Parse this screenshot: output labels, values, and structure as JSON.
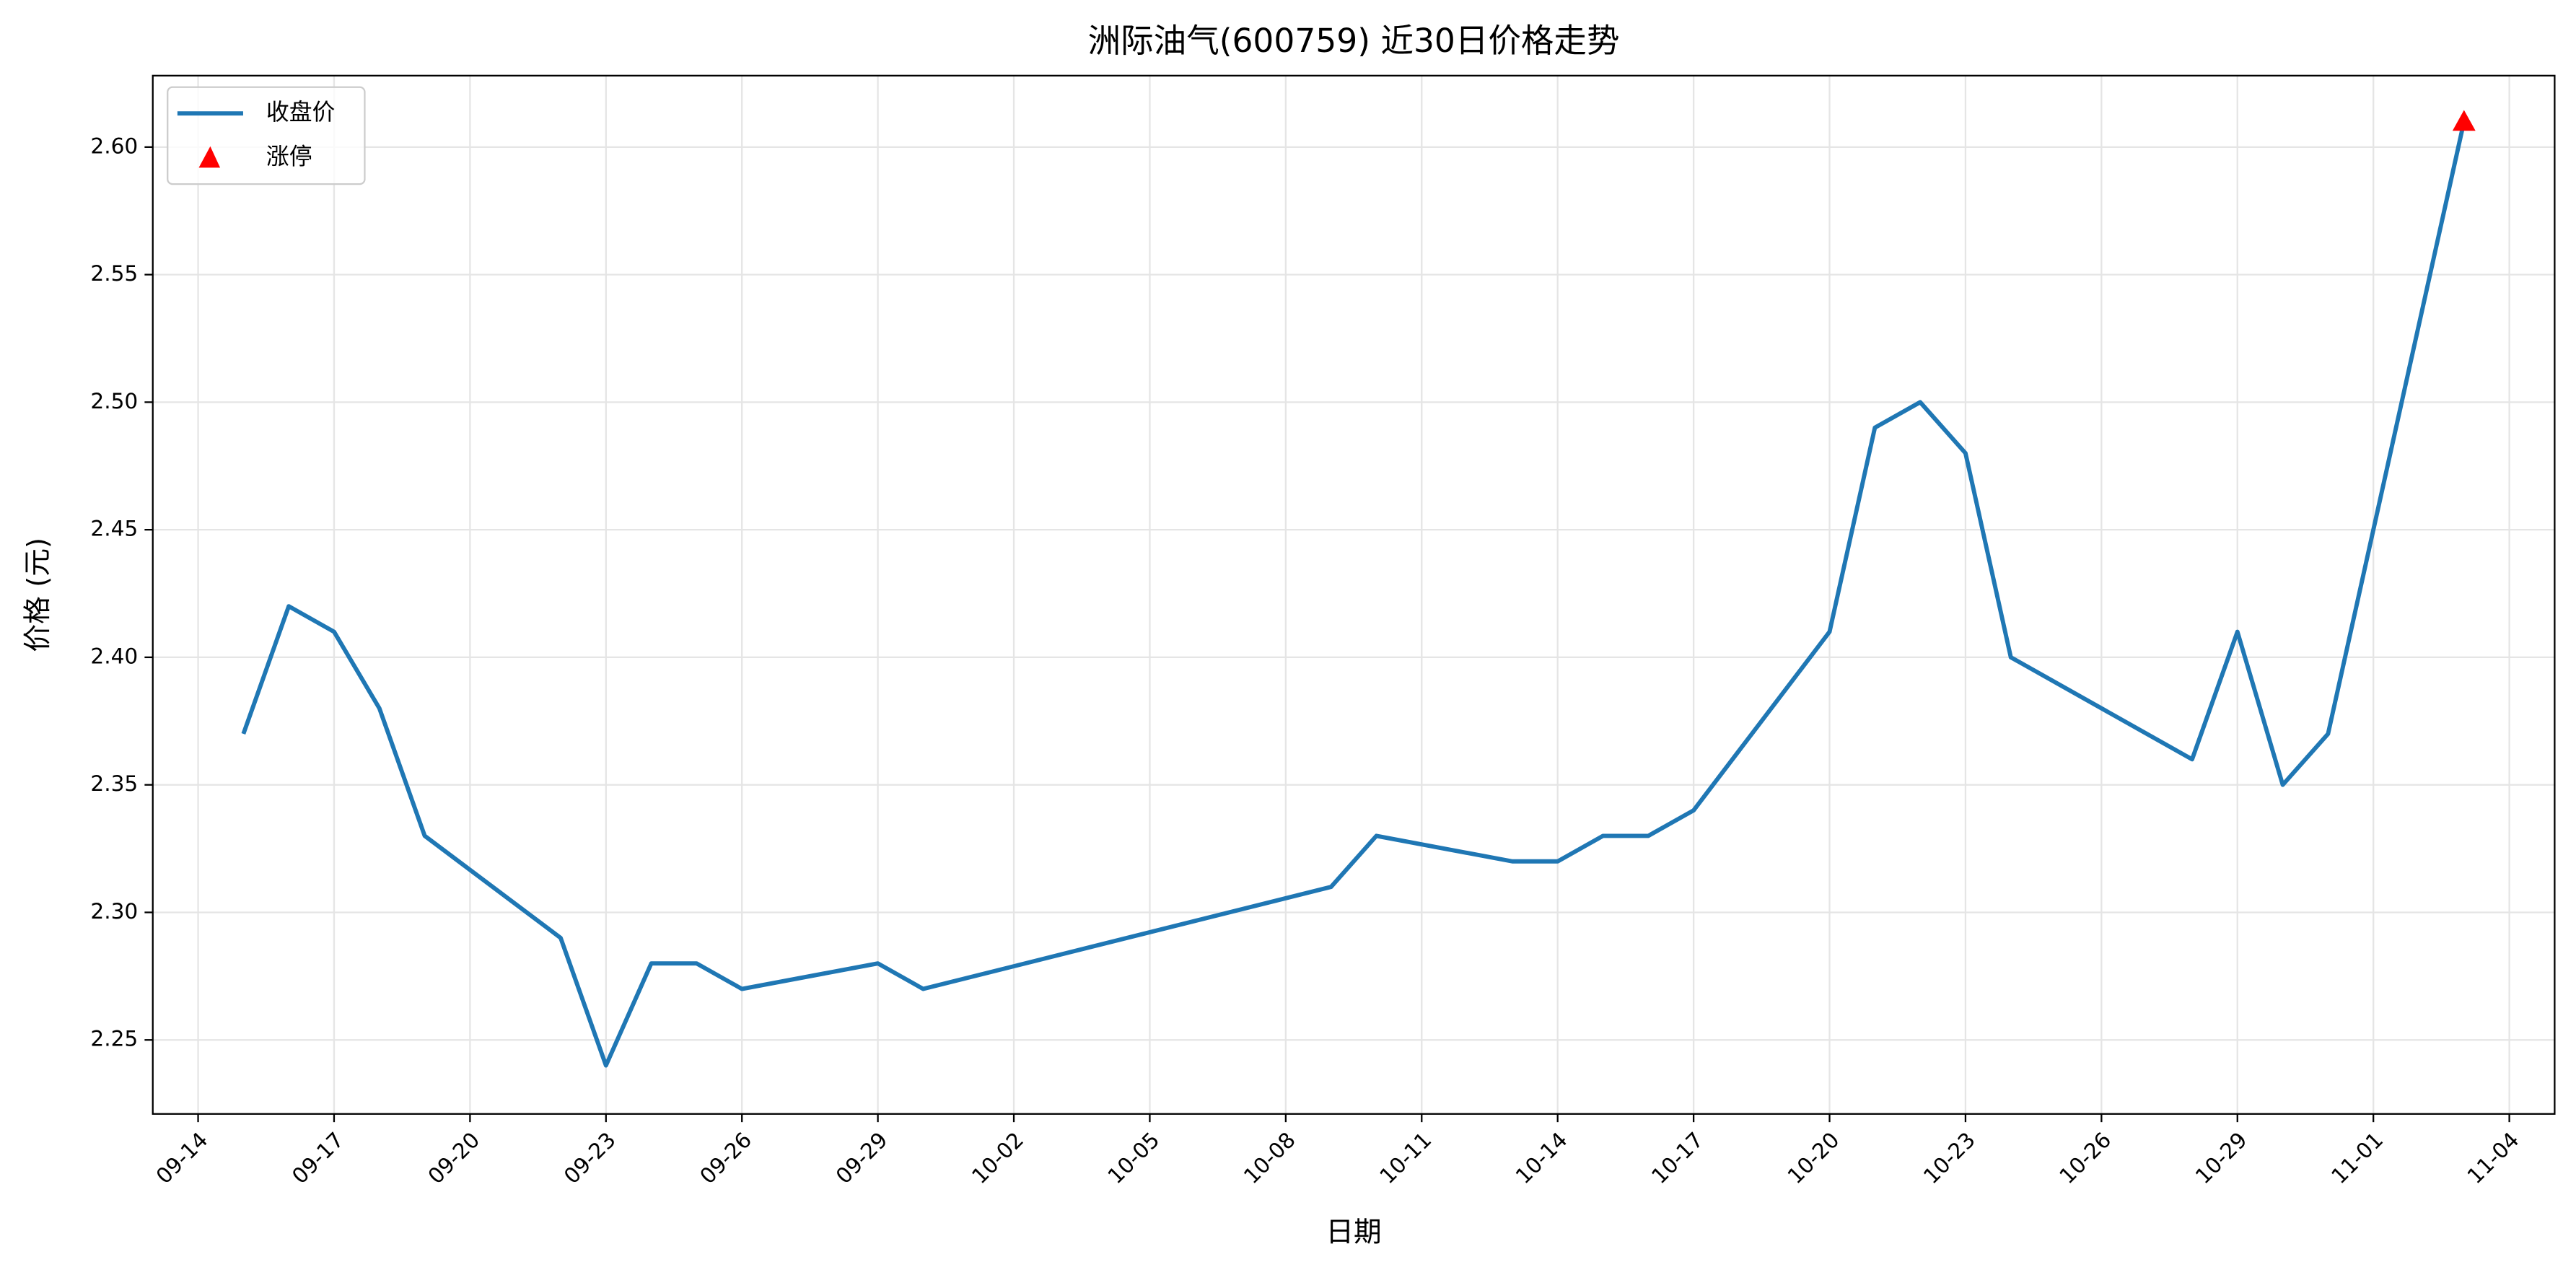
{
  "chart_data": {
    "type": "line",
    "title": "洲际油气(600759) 近30日价格走势",
    "xlabel": "日期",
    "ylabel": "价格 (元)",
    "x": [
      "09-15",
      "09-16",
      "09-17",
      "09-18",
      "09-19",
      "09-22",
      "09-23",
      "09-24",
      "09-25",
      "09-26",
      "09-29",
      "09-30",
      "10-09",
      "10-10",
      "10-13",
      "10-14",
      "10-15",
      "10-16",
      "10-17",
      "10-20",
      "10-21",
      "10-22",
      "10-23",
      "10-24",
      "10-28",
      "10-29",
      "10-30",
      "10-31",
      "11-03"
    ],
    "series": [
      {
        "name": "收盘价",
        "color": "#1f77b4",
        "values": [
          2.37,
          2.42,
          2.41,
          2.38,
          2.33,
          2.29,
          2.24,
          2.28,
          2.28,
          2.27,
          2.28,
          2.27,
          2.31,
          2.33,
          2.32,
          2.32,
          2.33,
          2.33,
          2.34,
          2.41,
          2.49,
          2.5,
          2.48,
          2.4,
          2.36,
          2.41,
          2.35,
          2.37,
          2.61
        ]
      },
      {
        "name": "涨停",
        "color": "#ff0000",
        "marker": "triangle",
        "x": [
          "11-03"
        ],
        "values": [
          2.61
        ]
      }
    ],
    "xlim": [
      "09-13",
      "11-05"
    ],
    "xticks": [
      "09-14",
      "09-17",
      "09-20",
      "09-23",
      "09-26",
      "09-29",
      "10-02",
      "10-05",
      "10-08",
      "10-11",
      "10-14",
      "10-17",
      "10-20",
      "10-23",
      "10-26",
      "10-29",
      "11-01",
      "11-04"
    ],
    "ylim": [
      2.221,
      2.628
    ],
    "yticks": [
      2.25,
      {
        "value": 2.3,
        "label": "2.30"
      },
      2.35,
      {
        "value": 2.4,
        "label": "2.40"
      },
      2.45,
      {
        "value": 2.5,
        "label": "2.50"
      },
      2.55,
      {
        "value": 2.6,
        "label": "2.60"
      }
    ],
    "grid": true,
    "legend": "upper left"
  }
}
